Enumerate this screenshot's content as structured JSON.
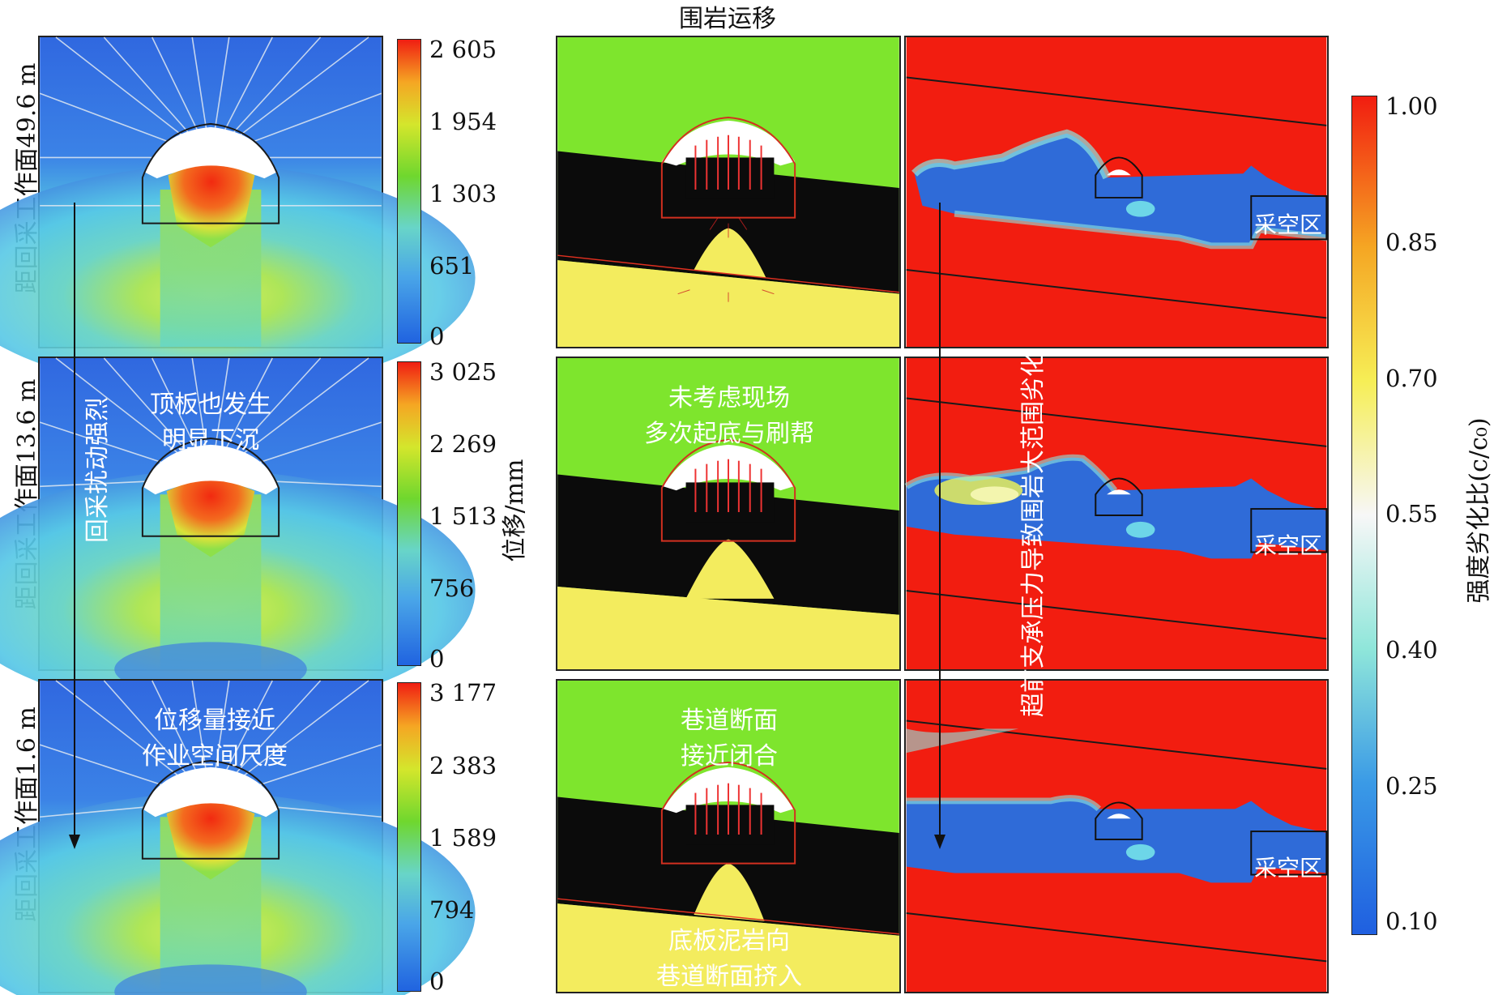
{
  "title": "围岩运移",
  "rows": [
    {
      "label": "距回采工作面49.6 m",
      "ticks": [
        "2 605",
        "1 954",
        "1 303",
        "651",
        "0"
      ]
    },
    {
      "label": "距回采工作面13.6 m",
      "ticks": [
        "3 025",
        "2 269",
        "1 513",
        "756",
        "0"
      ]
    },
    {
      "label": "距回采工作面1.6 m",
      "ticks": [
        "3 177",
        "2 383",
        "1 589",
        "794",
        "0"
      ]
    }
  ],
  "disp_axis_label": "位移/mm",
  "strength_axis_label": "强度劣化比(c/c₀)",
  "strength_ticks": [
    "1.00",
    "0.85",
    "0.70",
    "0.55",
    "0.40",
    "0.25",
    "0.10"
  ],
  "annotations": {
    "disturbance": "回采扰动强烈",
    "roof": [
      "顶板也发生",
      "明显下沉"
    ],
    "near": [
      "位移量接近",
      "作业空间尺度"
    ],
    "field": [
      "未考虑现场",
      "多次起底与刷帮"
    ],
    "closure": [
      "巷道断面",
      "接近闭合"
    ],
    "floor": [
      "底板泥岩向",
      "巷道断面挤入"
    ],
    "degradation": "超前支承压力导致围岩大范围劣化",
    "goaf": "采空区"
  },
  "colors": {
    "blue": "#2f6bd8",
    "green": "#7ee52d",
    "black": "#0b0b0b",
    "yellow": "#f3ec5e",
    "red": "#f21d10"
  }
}
